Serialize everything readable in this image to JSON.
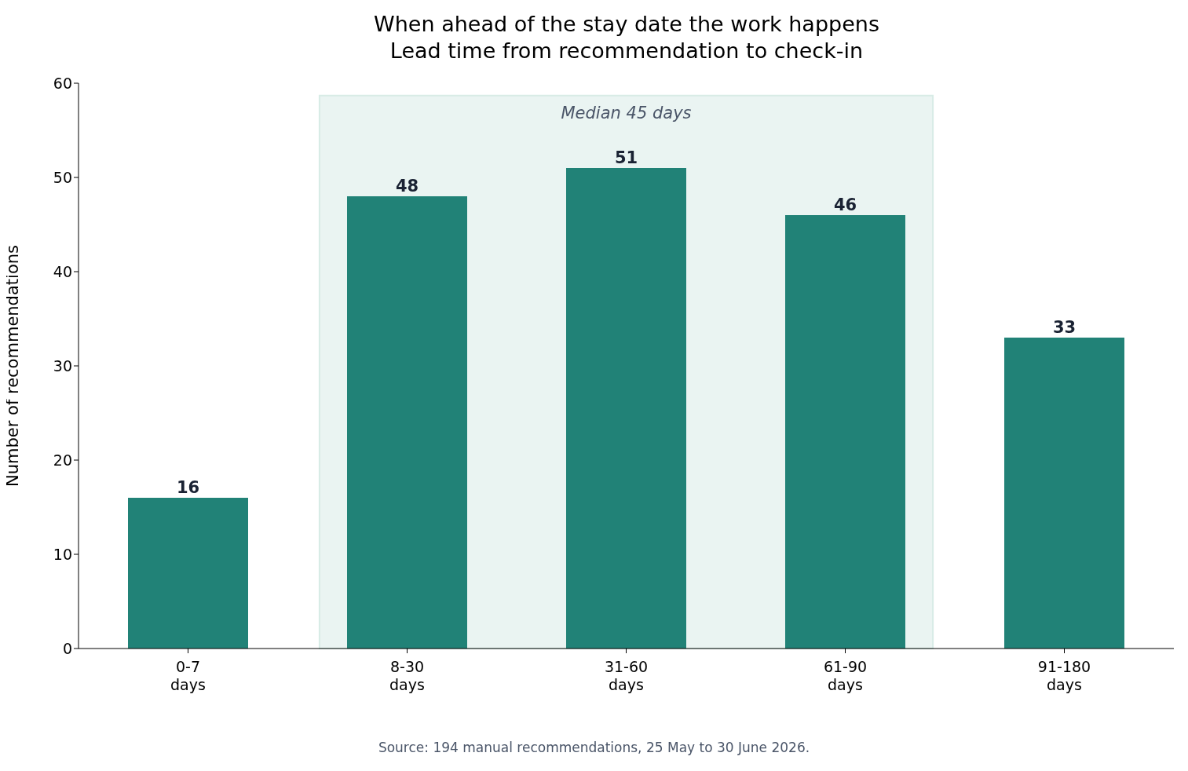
{
  "chart_data": {
    "type": "bar",
    "title": "When ahead of the stay date the work happens",
    "subtitle": "Lead time from recommendation to check-in",
    "ylabel": "Number of recommendations",
    "categories": [
      "0-7\ndays",
      "8-30\ndays",
      "31-60\ndays",
      "61-90\ndays",
      "91-180\ndays"
    ],
    "values": [
      16,
      48,
      51,
      46,
      33
    ],
    "color": "#218277",
    "ylim": [
      0,
      60
    ],
    "yticks": [
      0,
      10,
      20,
      30,
      40,
      50,
      60
    ],
    "data_labels": true,
    "bands": [
      {
        "axis": "x",
        "from": "8-30\ndays",
        "to": "61-90\ndays",
        "label": "Median 45 days",
        "color": "#eaf4f2"
      }
    ],
    "annotations": [
      "Source: 194 manual recommendations, 25 May to 30 June 2026."
    ]
  }
}
